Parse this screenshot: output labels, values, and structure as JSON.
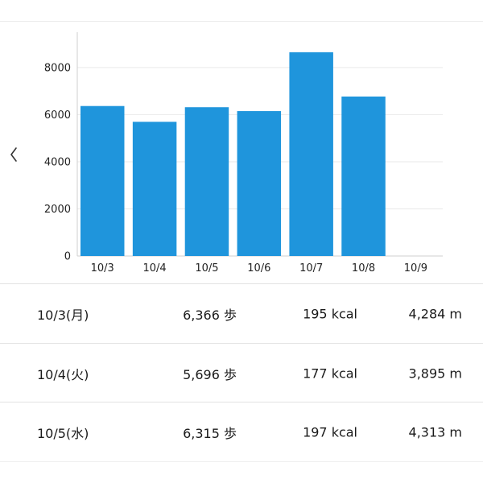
{
  "nav": {
    "back_icon": "chevron-left-icon"
  },
  "colors": {
    "bar": "#1f95dc",
    "grid": "#e9e9e9",
    "axis": "#cfcfcf",
    "text": "#1a1a1a"
  },
  "chart_data": {
    "type": "bar",
    "categories": [
      "10/3",
      "10/4",
      "10/5",
      "10/6",
      "10/7",
      "10/8",
      "10/9"
    ],
    "values": [
      6366,
      5696,
      6315,
      6150,
      8650,
      6770,
      null
    ],
    "y_ticks": [
      0,
      2000,
      4000,
      6000,
      8000
    ],
    "ylim": [
      0,
      9500
    ],
    "grid": true,
    "legend": "none"
  },
  "rows": [
    {
      "date": "10/3(月)",
      "steps": "6,366 歩",
      "kcal": "195 kcal",
      "distance": "4,284 m"
    },
    {
      "date": "10/4(火)",
      "steps": "5,696 歩",
      "kcal": "177 kcal",
      "distance": "3,895 m"
    },
    {
      "date": "10/5(水)",
      "steps": "6,315 歩",
      "kcal": "197 kcal",
      "distance": "4,313 m"
    }
  ]
}
